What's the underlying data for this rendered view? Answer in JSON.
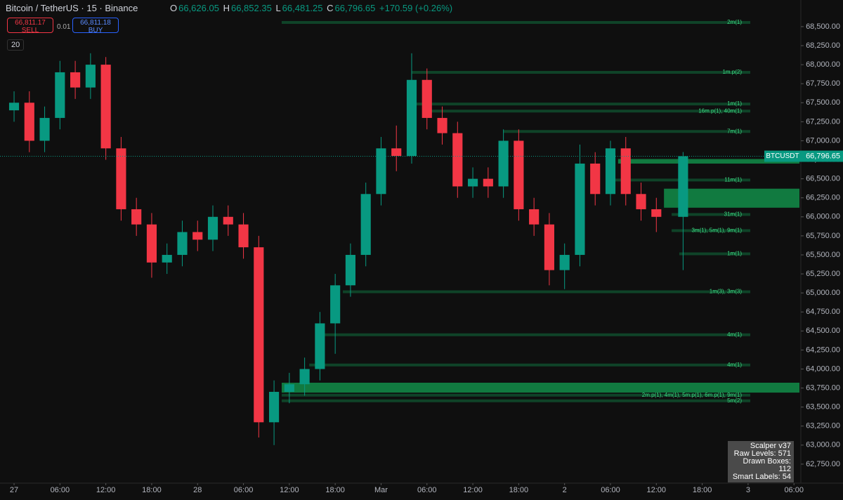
{
  "header": {
    "symbol": "Bitcoin / TetherUS · 15 · Binance",
    "o_label": "O",
    "open": "66,626.05",
    "h_label": "H",
    "high": "66,852.35",
    "l_label": "L",
    "low": "66,481.25",
    "c_label": "C",
    "close": "66,796.65",
    "change": "+170.59 (+0.26%)",
    "sell_price": "66,811.17",
    "sell": "SELL",
    "spread": "0.01",
    "buy_price": "66,811.18",
    "buy": "BUY",
    "interval_count": "20"
  },
  "info_box": [
    "Scalper v37",
    "Raw Levels: 571",
    "Drawn Boxes: 112",
    "Smart Labels: 54"
  ],
  "chart_data": {
    "type": "candlestick",
    "x": [
      0,
      2,
      4,
      6,
      8,
      10,
      12,
      14,
      16,
      18,
      20,
      22,
      24,
      26,
      28,
      30,
      32,
      34,
      36,
      38,
      40,
      42,
      44,
      46,
      48,
      50,
      52,
      54,
      56,
      58,
      60,
      62,
      64,
      66,
      68,
      70,
      72,
      74,
      76,
      78,
      80,
      82,
      84,
      87.5
    ],
    "open": [
      67400,
      67500,
      67000,
      67300,
      67900,
      67700,
      68000,
      66900,
      66100,
      65900,
      65400,
      65500,
      65800,
      65700,
      66000,
      65900,
      65600,
      63300,
      63700,
      63800,
      64000,
      64600,
      65100,
      65500,
      66300,
      66900,
      66800,
      67800,
      67300,
      67100,
      66400,
      66500,
      66400,
      67000,
      66100,
      65900,
      65300,
      65500,
      66700,
      66300,
      66900,
      66300,
      66100,
      66000
    ],
    "high": [
      67650,
      67650,
      67450,
      68050,
      68050,
      68150,
      68100,
      67050,
      66250,
      66050,
      65650,
      65950,
      65950,
      66150,
      66150,
      66050,
      65750,
      63850,
      63950,
      64150,
      64750,
      65250,
      65650,
      66450,
      67050,
      67200,
      68150,
      67950,
      67450,
      67250,
      66650,
      66650,
      67150,
      67150,
      66250,
      66050,
      65650,
      66950,
      66850,
      67000,
      67050,
      66450,
      66250,
      66852.35
    ],
    "low": [
      67250,
      66850,
      66850,
      67150,
      67550,
      67550,
      66750,
      65950,
      65750,
      65200,
      65250,
      65350,
      65550,
      65550,
      65750,
      65450,
      63100,
      63000,
      63550,
      63650,
      63850,
      64200,
      64950,
      65350,
      66150,
      66600,
      66700,
      67150,
      66950,
      66250,
      66250,
      66250,
      66250,
      65950,
      65750,
      65100,
      65050,
      65350,
      66150,
      66150,
      66150,
      65950,
      65800,
      65300
    ],
    "close": [
      67500,
      67000,
      67300,
      67900,
      67700,
      68000,
      66900,
      66100,
      65900,
      65400,
      65500,
      65800,
      65700,
      66000,
      65900,
      65600,
      63300,
      63700,
      63800,
      64000,
      64600,
      65100,
      65500,
      66300,
      66900,
      66800,
      67800,
      67300,
      67100,
      66400,
      66500,
      66400,
      67000,
      66100,
      65900,
      65300,
      65500,
      66700,
      66300,
      66900,
      66300,
      66100,
      66000,
      66796.65
    ],
    "up_color": "#089981",
    "down_color": "#f23645",
    "xlim": [
      -1.84,
      102.9
    ],
    "ylim": [
      62500,
      68850
    ],
    "xticks": [
      {
        "value": 0,
        "label": "27"
      },
      {
        "value": 6,
        "label": "06:00"
      },
      {
        "value": 12,
        "label": "12:00"
      },
      {
        "value": 18,
        "label": "18:00"
      },
      {
        "value": 24,
        "label": "28"
      },
      {
        "value": 30,
        "label": "06:00"
      },
      {
        "value": 36,
        "label": "12:00"
      },
      {
        "value": 42,
        "label": "18:00"
      },
      {
        "value": 48,
        "label": "Mar"
      },
      {
        "value": 54,
        "label": "06:00"
      },
      {
        "value": 60,
        "label": "12:00"
      },
      {
        "value": 66,
        "label": "18:00"
      },
      {
        "value": 72,
        "label": "2"
      },
      {
        "value": 78,
        "label": "06:00"
      },
      {
        "value": 84,
        "label": "12:00"
      },
      {
        "value": 90,
        "label": "18:00"
      },
      {
        "value": 96,
        "label": "3"
      },
      {
        "value": 102,
        "label": "06:00"
      }
    ],
    "yticks": [
      {
        "value": 62750,
        "label": "62,750.00"
      },
      {
        "value": 63000,
        "label": "63,000.00"
      },
      {
        "value": 63250,
        "label": "63,250.00"
      },
      {
        "value": 63500,
        "label": "63,500.00"
      },
      {
        "value": 63750,
        "label": "63,750.00"
      },
      {
        "value": 64000,
        "label": "64,000.00"
      },
      {
        "value": 64250,
        "label": "64,250.00"
      },
      {
        "value": 64500,
        "label": "64,500.00"
      },
      {
        "value": 64750,
        "label": "64,750.00"
      },
      {
        "value": 65000,
        "label": "65,000.00"
      },
      {
        "value": 65250,
        "label": "65,250.00"
      },
      {
        "value": 65500,
        "label": "65,500.00"
      },
      {
        "value": 65750,
        "label": "65,750.00"
      },
      {
        "value": 66000,
        "label": "66,000.00"
      },
      {
        "value": 66250,
        "label": "66,250.00"
      },
      {
        "value": 66500,
        "label": "66,500.00"
      },
      {
        "value": 66750,
        "label": "66,750.00"
      },
      {
        "value": 67000,
        "label": "67,000.00"
      },
      {
        "value": 67250,
        "label": "67,250.00"
      },
      {
        "value": 67500,
        "label": "67,500.00"
      },
      {
        "value": 67750,
        "label": "67,750.00"
      },
      {
        "value": 68000,
        "label": "68,000.00"
      },
      {
        "value": 68250,
        "label": "68,250.00"
      },
      {
        "value": 68500,
        "label": "68,500.00"
      }
    ],
    "last_price": {
      "value": 66796.65,
      "label": "66,796.65",
      "symbol": "BTCUSDT"
    },
    "levels": [
      {
        "label": "2m(1)",
        "value": 68555,
        "x_start": 35
      },
      {
        "label": "1m.p(2)",
        "value": 67899,
        "x_start": 52
      },
      {
        "label": "1m(1)",
        "value": 67483,
        "x_start": 52
      },
      {
        "label": "16m.p(1), 40m(1)",
        "value": 67390,
        "x_start": 54
      },
      {
        "label": "7m(1)",
        "value": 67122,
        "x_start": 64
      },
      {
        "label": "11m(1)",
        "value": 66484,
        "x_start": 78
      },
      {
        "label": "31m(1)",
        "value": 66031,
        "x_start": 86
      },
      {
        "label": "3m(1), 5m(1), 9m(1)",
        "value": 65819,
        "x_start": 86
      },
      {
        "label": "1m(1)",
        "value": 65514,
        "x_start": 87
      },
      {
        "label": "1m(3), 3m(3)",
        "value": 65015,
        "x_start": 43
      },
      {
        "label": "4m(1)",
        "value": 64450,
        "x_start": 40
      },
      {
        "label": "4m(1)",
        "value": 64053,
        "x_start": 38.6
      },
      {
        "label": "2m.p(1), 4m(1), 5m.p(1), 6m.p(1), 9m(1)",
        "value": 63656,
        "x_start": 35
      },
      {
        "label": "5m(2)",
        "value": 63582,
        "x_start": 35
      }
    ],
    "zones": [
      {
        "from": 66370,
        "to": 66120,
        "x_start": 85
      },
      {
        "from": 63820,
        "to": 63690,
        "x_start": 35
      },
      {
        "from": 66760,
        "to": 66700,
        "x_start": 79
      }
    ]
  }
}
